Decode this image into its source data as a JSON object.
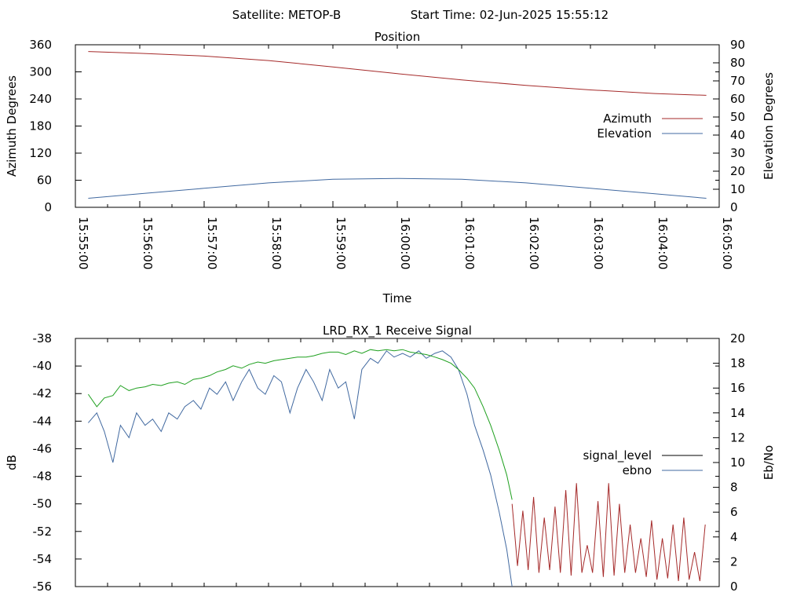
{
  "header": {
    "satellite": "Satellite: METOP-B",
    "start_time": "Start Time: 02-Jun-2025 15:55:12"
  },
  "chart_data": [
    {
      "type": "line",
      "title": "Position",
      "xlabel": "Time",
      "ylabel": "Azimuth Degrees",
      "y2label": "Elevation Degrees",
      "xlim": [
        "15:55:00",
        "16:05:00"
      ],
      "xticks": [
        "15:55:00",
        "15:56:00",
        "15:57:00",
        "15:58:00",
        "15:59:00",
        "16:00:00",
        "16:01:00",
        "16:02:00",
        "16:03:00",
        "16:04:00",
        "16:05:00"
      ],
      "ylim": [
        0,
        360
      ],
      "yticks": [
        0,
        60,
        120,
        180,
        240,
        300,
        360
      ],
      "y2lim": [
        0,
        90
      ],
      "y2ticks": [
        0,
        10,
        20,
        30,
        40,
        50,
        60,
        70,
        80,
        90
      ],
      "grid": false,
      "legend": "right",
      "series": [
        {
          "name": "Azimuth",
          "axis": "y",
          "color": "#a52a2a",
          "x": [
            "15:55:12",
            "15:56:00",
            "15:57:00",
            "15:58:00",
            "15:59:00",
            "16:00:00",
            "16:01:00",
            "16:02:00",
            "16:03:00",
            "16:04:00",
            "16:04:48"
          ],
          "values": [
            345,
            341,
            335,
            325,
            311,
            296,
            282,
            270,
            260,
            252,
            248
          ]
        },
        {
          "name": "Elevation",
          "axis": "y2",
          "color": "#4169a0",
          "x": [
            "15:55:12",
            "15:56:00",
            "15:57:00",
            "15:58:00",
            "15:59:00",
            "16:00:00",
            "16:01:00",
            "16:02:00",
            "16:03:00",
            "16:04:00",
            "16:04:48"
          ],
          "values": [
            5,
            7.5,
            10.5,
            13.5,
            15.5,
            16,
            15.5,
            13.5,
            10.5,
            7.5,
            5
          ]
        }
      ]
    },
    {
      "type": "line",
      "title": "LRD_RX_1 Receive Signal",
      "xlabel": "",
      "ylabel": "dB",
      "y2label": "Eb/No",
      "xlim": [
        "15:55:00",
        "16:05:00"
      ],
      "ylim": [
        -56,
        -38
      ],
      "yticks": [
        -56,
        -54,
        -52,
        -50,
        -48,
        -46,
        -44,
        -42,
        -40,
        -38
      ],
      "y2lim": [
        0,
        20
      ],
      "y2ticks": [
        0,
        2,
        4,
        6,
        8,
        10,
        12,
        14,
        16,
        18,
        20
      ],
      "grid": false,
      "legend": "right",
      "series": [
        {
          "name": "signal_level",
          "axis": "y",
          "color": "#a52a2a",
          "x": [
            "16:01:47",
            "16:01:52",
            "16:01:57",
            "16:02:02",
            "16:02:07",
            "16:02:12",
            "16:02:17",
            "16:02:22",
            "16:02:27",
            "16:02:32",
            "16:02:37",
            "16:02:42",
            "16:02:47",
            "16:02:52",
            "16:02:57",
            "16:03:02",
            "16:03:07",
            "16:03:12",
            "16:03:17",
            "16:03:22",
            "16:03:27",
            "16:03:32",
            "16:03:37",
            "16:03:42",
            "16:03:47",
            "16:03:52",
            "16:03:57",
            "16:04:02",
            "16:04:07",
            "16:04:12",
            "16:04:17",
            "16:04:22",
            "16:04:27",
            "16:04:32",
            "16:04:37",
            "16:04:42",
            "16:04:47"
          ],
          "values": [
            -50,
            -54.5,
            -50.5,
            -54.8,
            -49.5,
            -55,
            -51,
            -54.8,
            -50.2,
            -55,
            -49,
            -55.2,
            -48.5,
            -55,
            -53,
            -55,
            -49.8,
            -55.3,
            -48.5,
            -55.2,
            -50,
            -55,
            -51.5,
            -55,
            -52.5,
            -55.3,
            -51.2,
            -55.5,
            -52.5,
            -55.4,
            -51.5,
            -55.6,
            -51,
            -55.5,
            -53.5,
            -55.6,
            -51.5
          ]
        },
        {
          "name": "ebno",
          "axis": "y2",
          "color": "#4169a0",
          "x": [
            "15:55:12",
            "15:55:20",
            "15:55:27",
            "15:55:35",
            "15:55:42",
            "15:55:50",
            "15:55:57",
            "15:56:05",
            "15:56:12",
            "15:56:20",
            "15:56:27",
            "15:56:35",
            "15:56:42",
            "15:56:50",
            "15:56:57",
            "15:57:05",
            "15:57:12",
            "15:57:20",
            "15:57:27",
            "15:57:35",
            "15:57:42",
            "15:57:50",
            "15:57:57",
            "15:58:05",
            "15:58:12",
            "15:58:20",
            "15:58:27",
            "15:58:35",
            "15:58:42",
            "15:58:50",
            "15:58:57",
            "15:59:05",
            "15:59:12",
            "15:59:20",
            "15:59:27",
            "15:59:35",
            "15:59:42",
            "15:59:50",
            "15:59:57",
            "16:00:05",
            "16:00:12",
            "16:00:20",
            "16:00:27",
            "16:00:35",
            "16:00:42",
            "16:00:50",
            "16:00:57",
            "16:01:05",
            "16:01:12",
            "16:01:20",
            "16:01:27",
            "16:01:35",
            "16:01:42",
            "16:01:47"
          ],
          "values": [
            13.2,
            14,
            12.5,
            10,
            13,
            12,
            14,
            13,
            13.5,
            12.5,
            14,
            13.5,
            14.5,
            15,
            14.3,
            16,
            15.5,
            16.5,
            15,
            16.5,
            17.5,
            16,
            15.5,
            17,
            16.5,
            14,
            16,
            17.5,
            16.5,
            15,
            17.5,
            16,
            16.5,
            13.5,
            17.5,
            18.4,
            18,
            19,
            18.5,
            18.8,
            18.5,
            19,
            18.4,
            18.8,
            19,
            18.5,
            17.5,
            15.5,
            13,
            11,
            9,
            6,
            3,
            0
          ]
        },
        {
          "name": "",
          "axis": "y2",
          "color": "#1fa01f",
          "x": [
            "15:55:12",
            "15:55:20",
            "15:55:27",
            "15:55:35",
            "15:55:42",
            "15:55:50",
            "15:55:57",
            "15:56:05",
            "15:56:12",
            "15:56:20",
            "15:56:27",
            "15:56:35",
            "15:56:42",
            "15:56:50",
            "15:56:57",
            "15:57:05",
            "15:57:12",
            "15:57:20",
            "15:57:27",
            "15:57:35",
            "15:57:42",
            "15:57:50",
            "15:57:57",
            "15:58:05",
            "15:58:12",
            "15:58:20",
            "15:58:27",
            "15:58:35",
            "15:58:42",
            "15:58:50",
            "15:58:57",
            "15:59:05",
            "15:59:12",
            "15:59:20",
            "15:59:27",
            "15:59:35",
            "15:59:42",
            "15:59:50",
            "15:59:57",
            "16:00:05",
            "16:00:12",
            "16:00:20",
            "16:00:27",
            "16:00:35",
            "16:00:42",
            "16:00:50",
            "16:00:57",
            "16:01:05",
            "16:01:12",
            "16:01:20",
            "16:01:27",
            "16:01:35",
            "16:01:42",
            "16:01:47"
          ],
          "values": [
            15.5,
            14.5,
            15.2,
            15.4,
            16.2,
            15.8,
            16,
            16.1,
            16.3,
            16.2,
            16.4,
            16.5,
            16.3,
            16.7,
            16.8,
            17,
            17.3,
            17.5,
            17.8,
            17.6,
            17.9,
            18.1,
            18,
            18.2,
            18.3,
            18.4,
            18.5,
            18.5,
            18.6,
            18.8,
            18.9,
            18.9,
            18.7,
            19,
            18.8,
            19.1,
            19,
            19.1,
            19,
            19.1,
            18.9,
            18.8,
            18.7,
            18.5,
            18.3,
            18,
            17.5,
            16.8,
            16,
            14.5,
            13,
            11,
            9,
            7
          ]
        }
      ]
    }
  ]
}
